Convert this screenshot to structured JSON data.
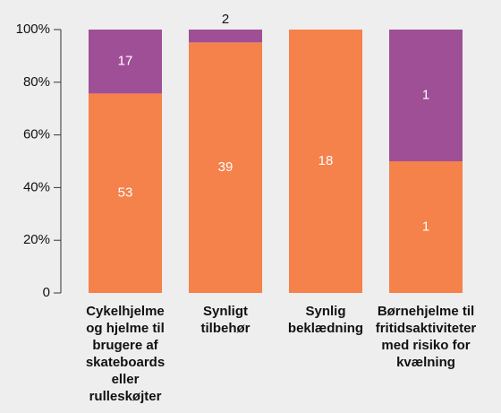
{
  "chart_data": {
    "type": "bar",
    "stacking": "percent",
    "categories": [
      "Cykelhjelme og hjelme til brugere af skateboards eller rulleskøjter",
      "Synligt tilbehør",
      "Synlig beklædning",
      "Børnehjelme til fritidsaktiviteter med risiko for kvælning"
    ],
    "series": [
      {
        "color": "#f5814b",
        "values": [
          53,
          39,
          18,
          1
        ]
      },
      {
        "color": "#9f4f96",
        "values": [
          17,
          2,
          null,
          1
        ]
      }
    ],
    "ylim": [
      0,
      100
    ],
    "yticks": [
      0,
      {
        "value": 20,
        "label": "20%"
      },
      {
        "value": 40,
        "label": "40%"
      },
      {
        "value": 60,
        "label": "60%"
      },
      {
        "value": 80,
        "label": "80%"
      },
      {
        "value": 100,
        "label": "100%"
      }
    ],
    "grid": false
  }
}
